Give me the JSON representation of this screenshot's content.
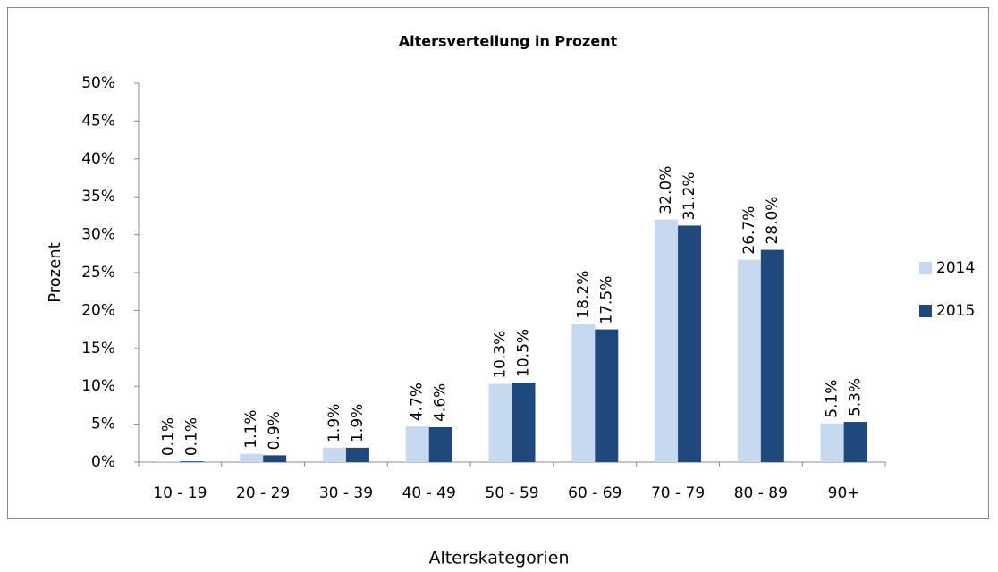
{
  "chart_data": {
    "type": "bar",
    "title": "Altersverteilung in Prozent",
    "x_label": "Alterskategorien",
    "y_label": "Prozent",
    "categories": [
      "10 - 19",
      "20 - 29",
      "30 - 39",
      "40 - 49",
      "50 - 59",
      "60 - 69",
      "70 - 79",
      "80 - 89",
      "90+"
    ],
    "series": [
      {
        "name": "2014",
        "color": "#c6d9f1",
        "values": [
          0.1,
          1.1,
          1.9,
          4.7,
          10.3,
          18.2,
          32.0,
          26.7,
          5.1
        ],
        "value_labels": [
          "0.1%",
          "1.1%",
          "1.9%",
          "4.7%",
          "10.3%",
          "18.2%",
          "32.0%",
          "26.7%",
          "5.1%"
        ]
      },
      {
        "name": "2015",
        "color": "#1f497d",
        "values": [
          0.1,
          0.9,
          1.9,
          4.6,
          10.5,
          17.5,
          31.2,
          28.0,
          5.3
        ],
        "value_labels": [
          "0.1%",
          "0.9%",
          "1.9%",
          "4.6%",
          "10.5%",
          "17.5%",
          "31.2%",
          "28.0%",
          "5.3%"
        ]
      }
    ],
    "ylim": [
      0,
      50
    ],
    "yticks": [
      {
        "value": 0,
        "label": "0%"
      },
      {
        "value": 5,
        "label": "5%"
      },
      {
        "value": 10,
        "label": "10%"
      },
      {
        "value": 15,
        "label": "15%"
      },
      {
        "value": 20,
        "label": "20%"
      },
      {
        "value": 25,
        "label": "25%"
      },
      {
        "value": 30,
        "label": "30%"
      },
      {
        "value": 35,
        "label": "35%"
      },
      {
        "value": 40,
        "label": "40%"
      },
      {
        "value": 45,
        "label": "45%"
      },
      {
        "value": 50,
        "label": "50%"
      }
    ],
    "grid": false,
    "legend": "right"
  }
}
